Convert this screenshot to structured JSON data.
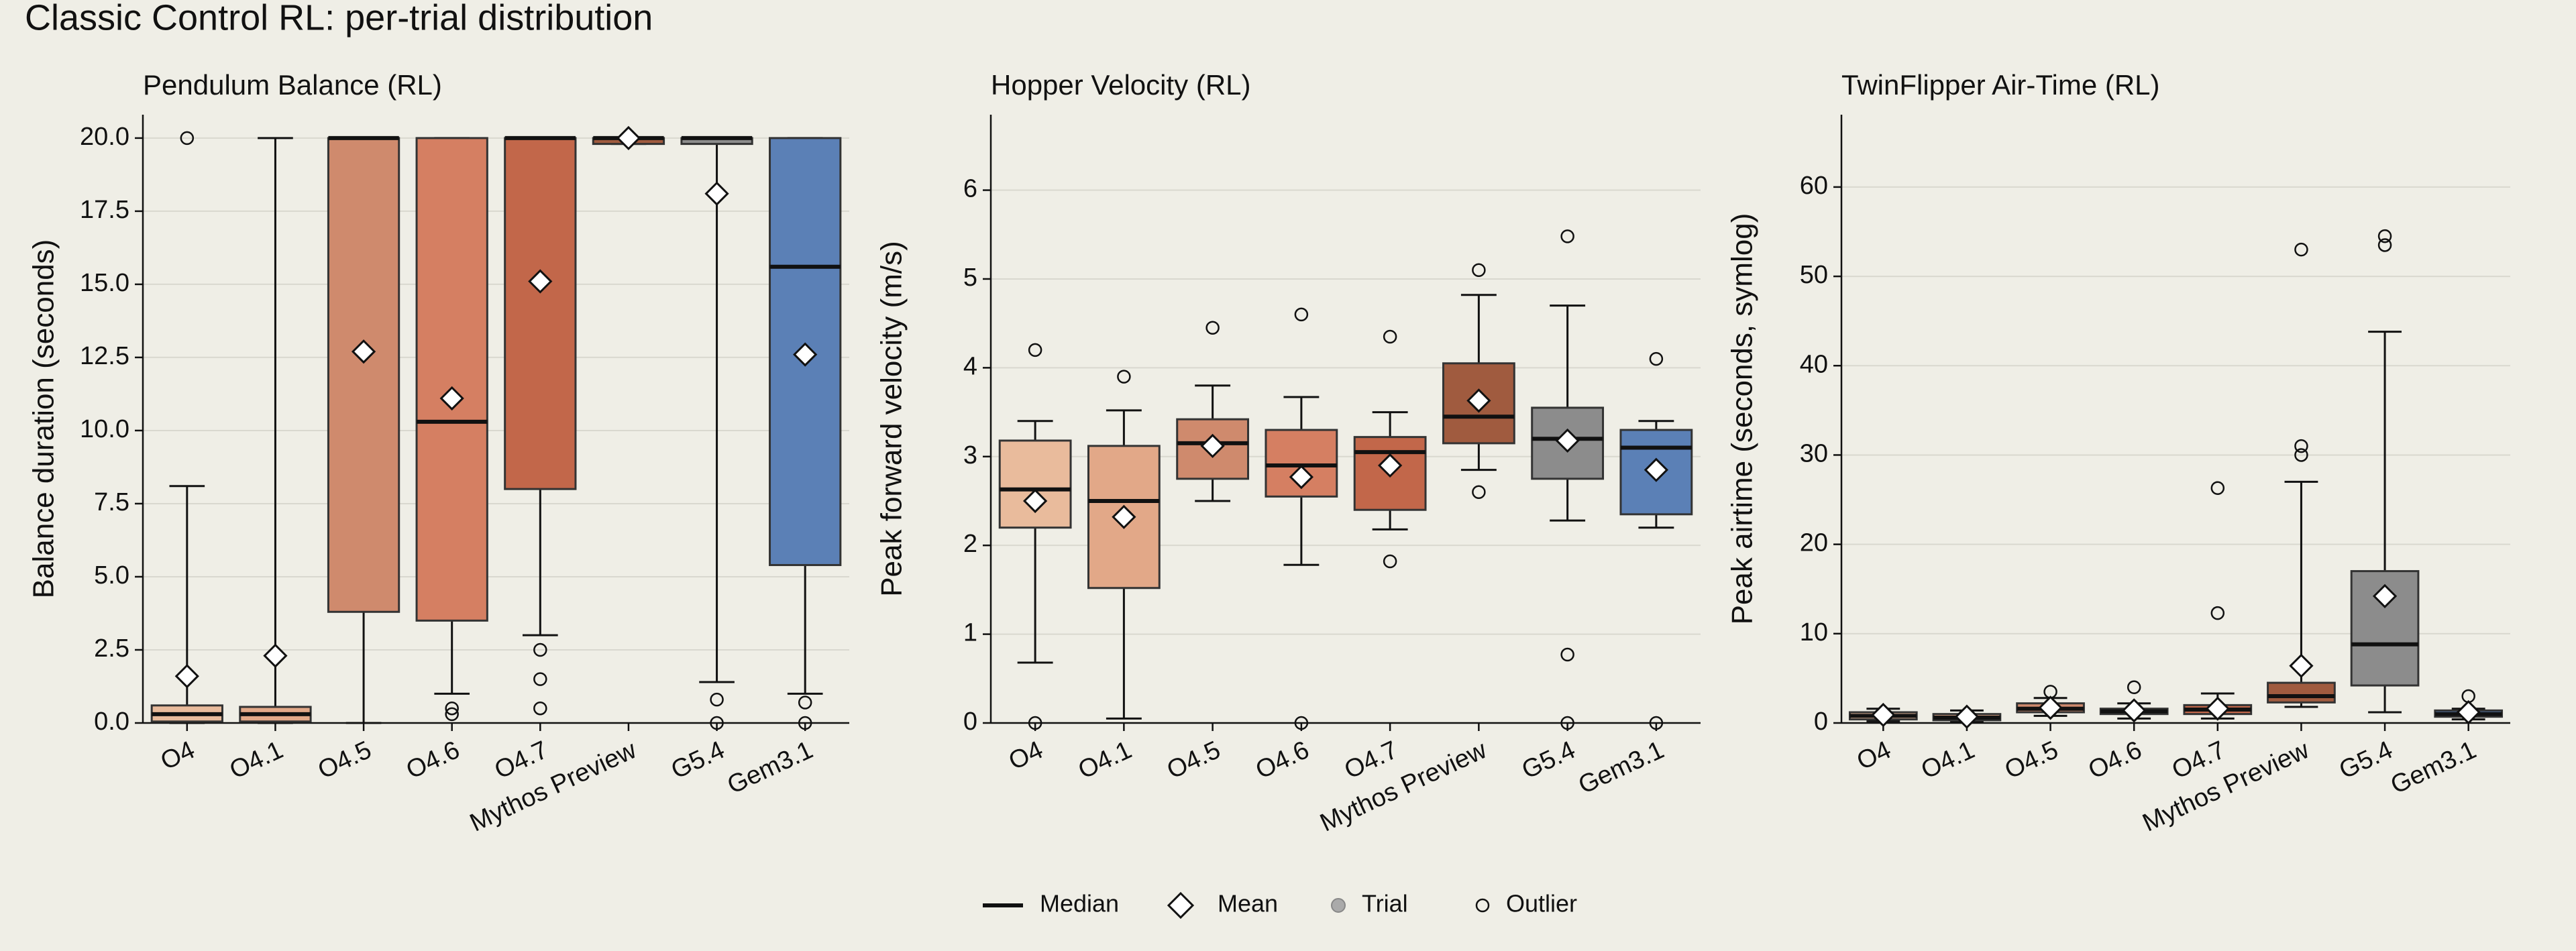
{
  "title": "Classic Control RL: per-trial distribution",
  "legend": [
    "Median",
    "Mean",
    "Trial",
    "Outlier"
  ],
  "chart_data": [
    {
      "type": "box",
      "title": "Pendulum Balance (RL)",
      "ylabel": "Balance duration (seconds)",
      "categories": [
        "O4",
        "O4.1",
        "O4.5",
        "O4.6",
        "O4.7",
        "Mythos Preview",
        "G5.4",
        "Gem3.1"
      ],
      "colors": [
        "#e9bb9c",
        "#e2a888",
        "#cf8a6d",
        "#d57f62",
        "#c2674a",
        "#a05b3f",
        "#8c8c8c",
        "#5b80b6"
      ],
      "ylim": [
        0,
        20.8
      ],
      "yticks": [
        {
          "value": 0,
          "label": "0.0"
        },
        2.5,
        {
          "value": 5,
          "label": "5.0"
        },
        7.5,
        {
          "value": 10,
          "label": "10.0"
        },
        12.5,
        {
          "value": 15,
          "label": "15.0"
        },
        17.5,
        {
          "value": 20,
          "label": "20.0"
        }
      ],
      "boxes": [
        {
          "whislo": 0,
          "q1": 0.05,
          "med": 0.3,
          "q3": 0.6,
          "whishi": 8.1,
          "mean": 1.6,
          "outliers": [
            20
          ]
        },
        {
          "whislo": 0,
          "q1": 0.05,
          "med": 0.3,
          "q3": 0.55,
          "whishi": 20,
          "mean": 2.3,
          "outliers": []
        },
        {
          "whislo": 0,
          "q1": 3.8,
          "med": 20,
          "q3": 20,
          "whishi": 20,
          "mean": 12.7,
          "outliers": []
        },
        {
          "whislo": 1.0,
          "q1": 3.5,
          "med": 10.3,
          "q3": 20,
          "whishi": 20,
          "mean": 11.1,
          "outliers": [
            0.5,
            0.3
          ]
        },
        {
          "whislo": 3.0,
          "q1": 8.0,
          "med": 20,
          "q3": 20,
          "whishi": 20,
          "mean": 15.1,
          "outliers": [
            2.5,
            1.5,
            0.5
          ]
        },
        {
          "whislo": 19.8,
          "q1": 19.8,
          "med": 20,
          "q3": 20,
          "whishi": 20,
          "mean": 20,
          "outliers": []
        },
        {
          "whislo": 1.4,
          "q1": 19.8,
          "med": 20,
          "q3": 20,
          "whishi": 20,
          "mean": 18.1,
          "outliers": [
            0.8,
            0
          ]
        },
        {
          "whislo": 1.0,
          "q1": 5.4,
          "med": 15.6,
          "q3": 20,
          "whishi": 20,
          "mean": 12.6,
          "outliers": [
            0.7,
            0
          ]
        }
      ]
    },
    {
      "type": "box",
      "title": "Hopper Velocity (RL)",
      "ylabel": "Peak forward velocity (m/s)",
      "categories": [
        "O4",
        "O4.1",
        "O4.5",
        "O4.6",
        "O4.7",
        "Mythos Preview",
        "G5.4",
        "Gem3.1"
      ],
      "colors": [
        "#e9bb9c",
        "#e2a888",
        "#cf8a6d",
        "#d57f62",
        "#c2674a",
        "#a05b3f",
        "#8c8c8c",
        "#5b80b6"
      ],
      "ylim": [
        0,
        6.85
      ],
      "yticks": [
        0,
        1,
        2,
        3,
        4,
        5,
        6
      ],
      "boxes": [
        {
          "whislo": 0.68,
          "q1": 2.2,
          "med": 2.63,
          "q3": 3.18,
          "whishi": 3.4,
          "mean": 2.5,
          "outliers": [
            4.2,
            0
          ]
        },
        {
          "whislo": 0.05,
          "q1": 1.52,
          "med": 2.5,
          "q3": 3.12,
          "whishi": 3.52,
          "mean": 2.32,
          "outliers": [
            3.9
          ]
        },
        {
          "whislo": 2.5,
          "q1": 2.75,
          "med": 3.15,
          "q3": 3.42,
          "whishi": 3.8,
          "mean": 3.12,
          "outliers": [
            4.45
          ]
        },
        {
          "whislo": 1.78,
          "q1": 2.55,
          "med": 2.9,
          "q3": 3.3,
          "whishi": 3.67,
          "mean": 2.77,
          "outliers": [
            4.6,
            0
          ]
        },
        {
          "whislo": 2.18,
          "q1": 2.4,
          "med": 3.05,
          "q3": 3.22,
          "whishi": 3.5,
          "mean": 2.9,
          "outliers": [
            4.35,
            1.82
          ]
        },
        {
          "whislo": 2.85,
          "q1": 3.15,
          "med": 3.45,
          "q3": 4.05,
          "whishi": 4.82,
          "mean": 3.63,
          "outliers": [
            5.1,
            2.6
          ]
        },
        {
          "whislo": 2.28,
          "q1": 2.75,
          "med": 3.2,
          "q3": 3.55,
          "whishi": 4.7,
          "mean": 3.18,
          "outliers": [
            5.48,
            0.77,
            0
          ]
        },
        {
          "whislo": 2.2,
          "q1": 2.35,
          "med": 3.1,
          "q3": 3.3,
          "whishi": 3.4,
          "mean": 2.85,
          "outliers": [
            4.1,
            0
          ]
        }
      ]
    },
    {
      "type": "box",
      "title": "TwinFlipper Air-Time (RL)",
      "ylabel": "Peak airtime (seconds, symlog)",
      "categories": [
        "O4",
        "O4.1",
        "O4.5",
        "O4.6",
        "O4.7",
        "Mythos Preview",
        "G5.4",
        "Gem3.1"
      ],
      "colors": [
        "#e9bb9c",
        "#e2a888",
        "#cf8a6d",
        "#d57f62",
        "#c2674a",
        "#a05b3f",
        "#8c8c8c",
        "#5b80b6"
      ],
      "ylim": [
        0,
        68.1
      ],
      "yticks": [
        0,
        10,
        20,
        30,
        40,
        50,
        60
      ],
      "boxes": [
        {
          "whislo": 0.2,
          "q1": 0.4,
          "med": 0.8,
          "q3": 1.2,
          "whishi": 1.6,
          "mean": 0.9,
          "outliers": []
        },
        {
          "whislo": 0.1,
          "q1": 0.3,
          "med": 0.6,
          "q3": 1.0,
          "whishi": 1.4,
          "mean": 0.7,
          "outliers": []
        },
        {
          "whislo": 0.8,
          "q1": 1.2,
          "med": 1.6,
          "q3": 2.2,
          "whishi": 2.8,
          "mean": 1.7,
          "outliers": [
            3.5
          ]
        },
        {
          "whislo": 0.5,
          "q1": 1.0,
          "med": 1.3,
          "q3": 1.6,
          "whishi": 2.2,
          "mean": 1.4,
          "outliers": [
            4.0
          ]
        },
        {
          "whislo": 0.5,
          "q1": 1.0,
          "med": 1.5,
          "q3": 2.0,
          "whishi": 3.3,
          "mean": 1.6,
          "outliers": [
            26.3,
            12.3
          ]
        },
        {
          "whislo": 1.8,
          "q1": 2.3,
          "med": 3.0,
          "q3": 4.5,
          "whishi": 27,
          "mean": 6.4,
          "outliers": [
            53,
            31,
            30
          ]
        },
        {
          "whislo": 1.2,
          "q1": 4.2,
          "med": 8.8,
          "q3": 17,
          "whishi": 43.8,
          "mean": 14.2,
          "outliers": [
            54.5,
            53.5
          ]
        },
        {
          "whislo": 0.4,
          "q1": 0.7,
          "med": 1.0,
          "q3": 1.4,
          "whishi": 1.6,
          "mean": 1.2,
          "outliers": [
            3.0
          ]
        }
      ]
    }
  ]
}
